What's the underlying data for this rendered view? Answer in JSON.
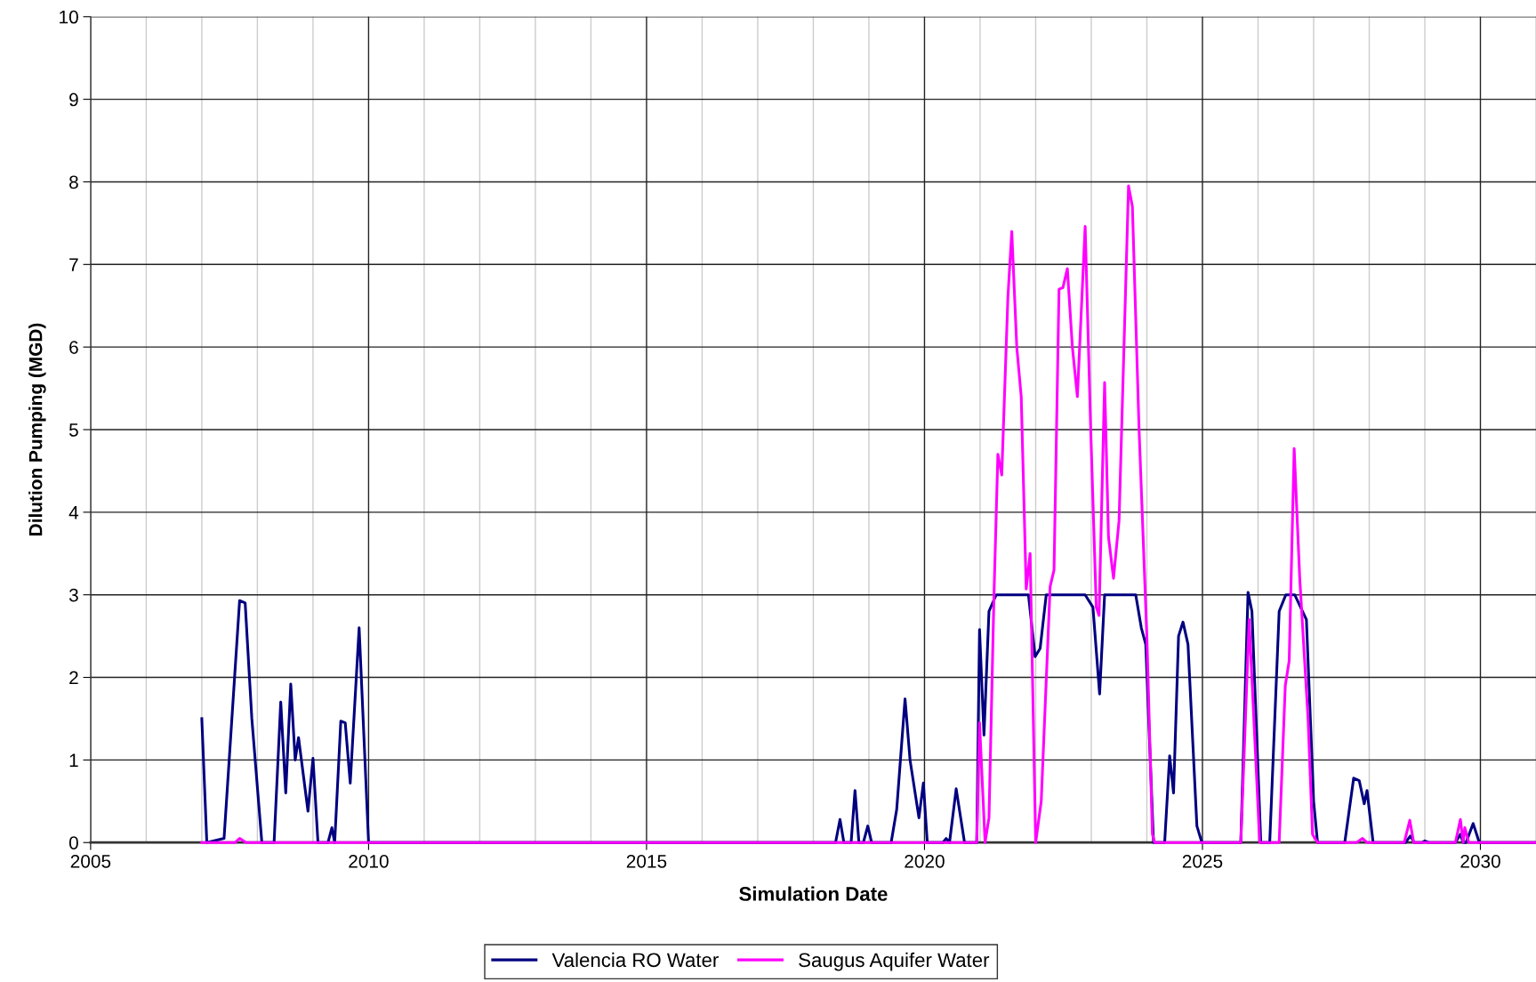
{
  "chart_data": {
    "type": "line",
    "xlabel": "Simulation Date",
    "ylabel": "Dilution Pumping (MGD)",
    "xlim": [
      2005,
      2031
    ],
    "ylim": [
      0,
      10
    ],
    "xticks": [
      2005,
      {
        "value": 2006,
        "label": null
      },
      {
        "value": 2007,
        "label": null
      },
      {
        "value": 2008,
        "label": null
      },
      {
        "value": 2009,
        "label": null
      },
      2010,
      {
        "value": 2011,
        "label": null
      },
      {
        "value": 2012,
        "label": null
      },
      {
        "value": 2013,
        "label": null
      },
      {
        "value": 2014,
        "label": null
      },
      2015,
      {
        "value": 2016,
        "label": null
      },
      {
        "value": 2017,
        "label": null
      },
      {
        "value": 2018,
        "label": null
      },
      {
        "value": 2019,
        "label": null
      },
      2020,
      {
        "value": 2021,
        "label": null
      },
      {
        "value": 2022,
        "label": null
      },
      {
        "value": 2023,
        "label": null
      },
      {
        "value": 2024,
        "label": null
      },
      2025,
      {
        "value": 2026,
        "label": null
      },
      {
        "value": 2027,
        "label": null
      },
      {
        "value": 2028,
        "label": null
      },
      {
        "value": 2029,
        "label": null
      },
      2030,
      {
        "value": 2031,
        "label": null
      }
    ],
    "yticks": [
      0,
      1,
      2,
      3,
      4,
      5,
      6,
      7,
      8,
      9,
      10
    ],
    "grid": true,
    "legend": "bottom",
    "marker": "none",
    "line_style": "solid",
    "series": [
      {
        "name": "Valencia RO Water",
        "color": "#000080",
        "x": [
          2007.0,
          2007.09,
          2007.4,
          2007.68,
          2007.78,
          2007.9,
          2008.08,
          2008.3,
          2008.42,
          2008.51,
          2008.6,
          2008.68,
          2008.74,
          2008.91,
          2009.0,
          2009.09,
          2009.27,
          2009.34,
          2009.39,
          2009.5,
          2009.58,
          2009.67,
          2009.83,
          2010.0,
          2018.4,
          2018.48,
          2018.55,
          2018.68,
          2018.75,
          2018.82,
          2018.9,
          2018.98,
          2019.05,
          2019.4,
          2019.5,
          2019.65,
          2019.74,
          2019.9,
          2019.98,
          2020.05,
          2020.33,
          2020.39,
          2020.45,
          2020.57,
          2020.72,
          2020.94,
          2020.99,
          2021.07,
          2021.16,
          2021.29,
          2021.87,
          2021.99,
          2022.08,
          2022.19,
          2022.89,
          2023.03,
          2023.15,
          2023.24,
          2023.8,
          2023.9,
          2023.98,
          2024.12,
          2024.32,
          2024.41,
          2024.48,
          2024.57,
          2024.65,
          2024.74,
          2024.9,
          2024.99,
          2025.69,
          2025.82,
          2025.89,
          2026.05,
          2026.21,
          2026.38,
          2026.5,
          2026.66,
          2026.87,
          2027.0,
          2027.07,
          2027.56,
          2027.72,
          2027.82,
          2027.91,
          2027.96,
          2028.07,
          2028.65,
          2028.74,
          2028.81,
          2028.95,
          2029.0,
          2029.07,
          2029.55,
          2029.64,
          2029.69,
          2029.74,
          2029.87,
          2029.98,
          2031.0
        ],
        "values": [
          1.5,
          0,
          0.05,
          2.93,
          2.9,
          1.5,
          0,
          0,
          1.7,
          0.6,
          1.92,
          1.0,
          1.27,
          0.38,
          1.02,
          0,
          0,
          0.18,
          0,
          1.47,
          1.45,
          0.72,
          2.6,
          0,
          0,
          0.28,
          0,
          0,
          0.63,
          0,
          0,
          0.2,
          0,
          0,
          0.4,
          1.74,
          1.0,
          0.3,
          0.72,
          0,
          0,
          0.05,
          0,
          0.65,
          0,
          0,
          2.58,
          1.3,
          2.8,
          3.0,
          3.0,
          2.25,
          2.35,
          3.0,
          3.0,
          2.85,
          1.8,
          3.0,
          3.0,
          2.6,
          2.4,
          0,
          0,
          1.05,
          0.6,
          2.5,
          2.67,
          2.4,
          0.2,
          0,
          0,
          3.03,
          2.8,
          0,
          0,
          2.8,
          3.0,
          3.0,
          2.7,
          0.5,
          0,
          0,
          0.78,
          0.75,
          0.47,
          0.63,
          0,
          0,
          0.08,
          0,
          0,
          0.02,
          0,
          0,
          0.1,
          0,
          0,
          0.23,
          0,
          0
        ]
      },
      {
        "name": "Saugus Aquifer Water",
        "color": "#ff00ff",
        "x": [
          2007.0,
          2007.6,
          2007.68,
          2007.8,
          2020.94,
          2020.99,
          2021.09,
          2021.16,
          2021.25,
          2021.32,
          2021.39,
          2021.5,
          2021.57,
          2021.66,
          2021.74,
          2021.83,
          2021.9,
          2022.0,
          2022.1,
          2022.26,
          2022.33,
          2022.42,
          2022.49,
          2022.57,
          2022.66,
          2022.75,
          2022.89,
          2022.99,
          2023.09,
          2023.14,
          2023.24,
          2023.31,
          2023.4,
          2023.5,
          2023.67,
          2023.74,
          2023.86,
          2024.0,
          2024.1,
          2024.14,
          2025.69,
          2025.84,
          2026.03,
          2026.38,
          2026.49,
          2026.56,
          2026.65,
          2026.75,
          2026.9,
          2026.98,
          2027.07,
          2027.77,
          2027.88,
          2027.96,
          2028.63,
          2028.73,
          2028.8,
          2029.55,
          2029.64,
          2029.69,
          2029.72,
          2029.79,
          2031.0
        ],
        "values": [
          0,
          0,
          0.05,
          0,
          0,
          1.45,
          0,
          0.3,
          3.0,
          4.7,
          4.45,
          6.6,
          7.4,
          6.0,
          5.4,
          3.07,
          3.5,
          0,
          0.5,
          3.1,
          3.3,
          6.7,
          6.72,
          6.95,
          6.0,
          5.4,
          7.46,
          5.0,
          2.85,
          2.75,
          5.57,
          3.7,
          3.2,
          3.9,
          7.95,
          7.7,
          5.0,
          2.5,
          0.1,
          0,
          0,
          2.7,
          0,
          0,
          1.9,
          2.2,
          4.77,
          3.2,
          1.5,
          0.1,
          0,
          0,
          0.05,
          0,
          0,
          0.27,
          0,
          0,
          0.28,
          0,
          0.18,
          0,
          0
        ]
      }
    ]
  }
}
